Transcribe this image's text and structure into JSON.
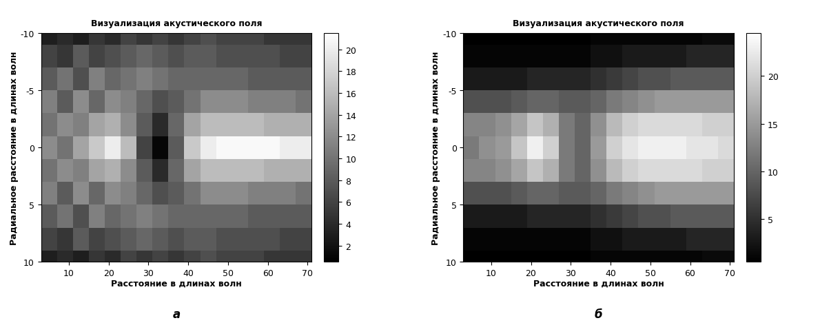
{
  "chart_data": [
    {
      "type": "heatmap",
      "title": "Визуализация акустического поля",
      "x_label": "Расстояние в длинах волн",
      "y_label": "Радиальное расстояние в длинах волн",
      "annotation": "а",
      "x": [
        5,
        9,
        13,
        17,
        21,
        25,
        29,
        33,
        37,
        41,
        45,
        49,
        53,
        57,
        61,
        65,
        69
      ],
      "y": [
        -10,
        -8,
        -6,
        -4,
        -2,
        0,
        2,
        4,
        6,
        8,
        10
      ],
      "cells": [
        [
          3,
          4,
          3,
          5,
          4,
          6,
          5,
          6,
          5,
          6,
          7,
          6,
          6,
          6,
          5,
          5,
          5
        ],
        [
          6,
          5,
          8,
          6,
          7,
          8,
          9,
          8,
          7,
          8,
          8,
          7,
          7,
          7,
          7,
          6,
          6
        ],
        [
          8,
          10,
          7,
          11,
          9,
          10,
          11,
          10,
          9,
          9,
          9,
          9,
          9,
          8,
          8,
          8,
          8
        ],
        [
          11,
          8,
          12,
          9,
          12,
          11,
          9,
          7,
          8,
          10,
          12,
          12,
          12,
          11,
          11,
          11,
          10
        ],
        [
          10,
          12,
          11,
          14,
          15,
          12,
          8,
          4,
          9,
          14,
          16,
          16,
          16,
          16,
          15,
          15,
          15
        ],
        [
          12,
          10,
          14,
          17,
          20,
          16,
          6,
          1,
          8,
          17,
          20,
          21,
          21,
          21,
          21,
          20,
          20
        ],
        [
          10,
          12,
          11,
          14,
          15,
          12,
          8,
          4,
          9,
          14,
          16,
          16,
          16,
          16,
          15,
          15,
          15
        ],
        [
          11,
          8,
          12,
          9,
          12,
          11,
          9,
          7,
          8,
          10,
          12,
          12,
          12,
          11,
          11,
          11,
          10
        ],
        [
          8,
          10,
          7,
          11,
          9,
          10,
          11,
          10,
          9,
          9,
          9,
          9,
          9,
          8,
          8,
          8,
          8
        ],
        [
          6,
          5,
          8,
          6,
          7,
          8,
          9,
          8,
          7,
          8,
          8,
          7,
          7,
          7,
          7,
          6,
          6
        ],
        [
          3,
          4,
          3,
          5,
          4,
          6,
          5,
          6,
          5,
          6,
          7,
          6,
          6,
          6,
          5,
          5,
          5
        ]
      ],
      "xlim": [
        3,
        71
      ],
      "xticks": [
        10,
        20,
        30,
        40,
        50,
        60,
        70
      ],
      "ylim": [
        10,
        -10
      ],
      "yticks": [
        -10,
        -5,
        0,
        5,
        10
      ],
      "colorbar_range": [
        0.5,
        21.5
      ],
      "colorbar_ticks": [
        2,
        4,
        6,
        8,
        10,
        12,
        14,
        16,
        18,
        20
      ]
    },
    {
      "type": "heatmap",
      "title": "Визуализация акустического поля",
      "x_label": "Расстояние в длинах волн",
      "y_label": "Радиальное расстояние в длинах волн",
      "annotation": "б",
      "x": [
        5,
        9,
        13,
        17,
        21,
        25,
        29,
        33,
        37,
        41,
        45,
        49,
        53,
        57,
        61,
        65,
        69
      ],
      "y": [
        -10,
        -8,
        -6,
        -4,
        -2,
        0,
        2,
        4,
        6,
        8,
        10
      ],
      "cells": [
        [
          0.5,
          0.5,
          0.5,
          0.5,
          0.5,
          0.5,
          0.5,
          0.5,
          1,
          1,
          1,
          1,
          1,
          1,
          1,
          1.5,
          1.5
        ],
        [
          1,
          1,
          1,
          1,
          1,
          1,
          1,
          1,
          2,
          2,
          3,
          3,
          3,
          3,
          4,
          4,
          4
        ],
        [
          3,
          3,
          3,
          3,
          4,
          4,
          4,
          4,
          5,
          6,
          7,
          8,
          8,
          9,
          9,
          9,
          9
        ],
        [
          8,
          8,
          8,
          9,
          10,
          10,
          9,
          9,
          10,
          12,
          13,
          14,
          15,
          15,
          15,
          15,
          15
        ],
        [
          13,
          13,
          14,
          16,
          19,
          17,
          12,
          10,
          14,
          18,
          20,
          21,
          21,
          21,
          21,
          20,
          20
        ],
        [
          12,
          14,
          15,
          19,
          23,
          20,
          12,
          10,
          15,
          20,
          22,
          23,
          23,
          23,
          22,
          22,
          21
        ],
        [
          13,
          13,
          14,
          16,
          19,
          17,
          12,
          10,
          14,
          18,
          20,
          21,
          21,
          21,
          21,
          20,
          20
        ],
        [
          8,
          8,
          8,
          9,
          10,
          10,
          9,
          9,
          10,
          12,
          13,
          14,
          15,
          15,
          15,
          15,
          15
        ],
        [
          3,
          3,
          3,
          3,
          4,
          4,
          4,
          4,
          5,
          6,
          7,
          8,
          8,
          9,
          9,
          9,
          9
        ],
        [
          1,
          1,
          1,
          1,
          1,
          1,
          1,
          1,
          2,
          2,
          3,
          3,
          3,
          3,
          4,
          4,
          4
        ],
        [
          0.5,
          0.5,
          0.5,
          0.5,
          0.5,
          0.5,
          0.5,
          0.5,
          1,
          1,
          1,
          1,
          1,
          1,
          1,
          1.5,
          1.5
        ]
      ],
      "xlim": [
        3,
        71
      ],
      "xticks": [
        10,
        20,
        30,
        40,
        50,
        60,
        70
      ],
      "ylim": [
        10,
        -10
      ],
      "yticks": [
        -10,
        -5,
        0,
        5,
        10
      ],
      "colorbar_range": [
        0.5,
        24.5
      ],
      "colorbar_ticks": [
        5,
        10,
        15,
        20
      ]
    }
  ]
}
